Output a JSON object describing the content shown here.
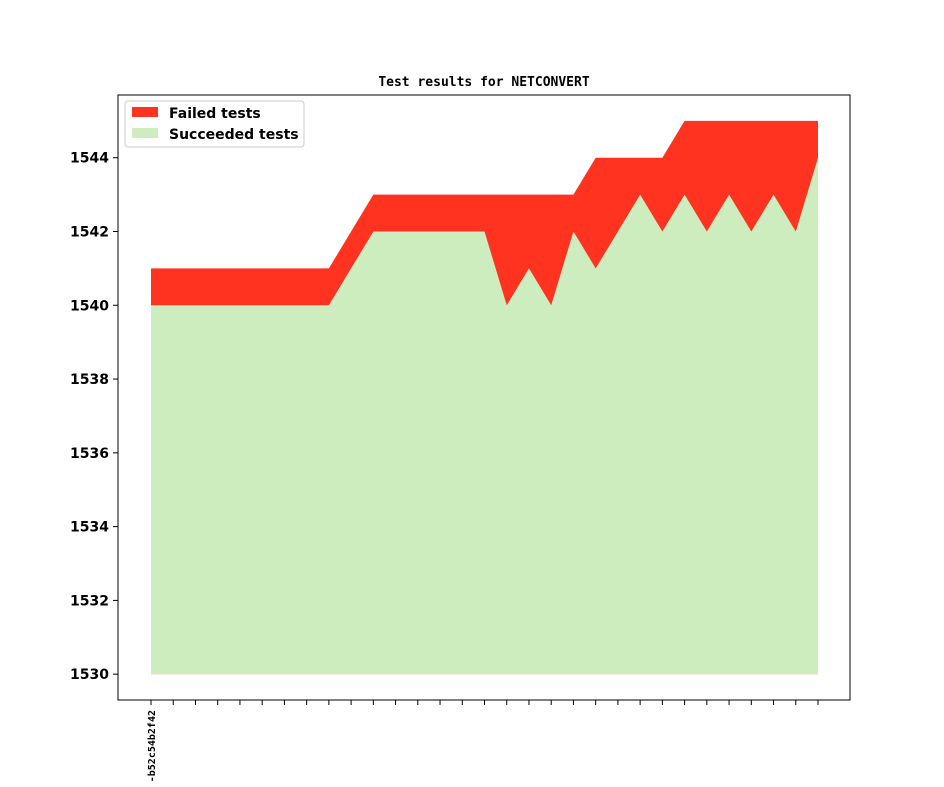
{
  "chart_data": {
    "type": "area",
    "title": "Test results for NETCONVERT",
    "xlabel": "",
    "ylabel": "",
    "ylim": [
      1529.3,
      1545.7
    ],
    "yticks": [
      1530,
      1532,
      1534,
      1536,
      1538,
      1540,
      1542,
      1544
    ],
    "x_count": 31,
    "x_tick_labels": [
      "-b52c54b2f42",
      "",
      "",
      "",
      "",
      "",
      "",
      "",
      "",
      "",
      "",
      "",
      "",
      "",
      "",
      "",
      "",
      "",
      "",
      "",
      "",
      "",
      "",
      "",
      "",
      "",
      "",
      "",
      "",
      "",
      ""
    ],
    "grid": false,
    "legend_position": "top-left",
    "baseline": 1530,
    "series": [
      {
        "name": "Failed tests",
        "color": "#ff331f",
        "values": [
          1541,
          1541,
          1541,
          1541,
          1541,
          1541,
          1541,
          1541,
          1541,
          1542,
          1543,
          1543,
          1543,
          1543,
          1543,
          1543,
          1543,
          1543,
          1543,
          1543,
          1544,
          1544,
          1544,
          1544,
          1545,
          1545,
          1545,
          1545,
          1545,
          1545,
          1545
        ]
      },
      {
        "name": "Succeeded tests",
        "color": "#ceedbe",
        "values": [
          1540,
          1540,
          1540,
          1540,
          1540,
          1540,
          1540,
          1540,
          1540,
          1541,
          1542,
          1542,
          1542,
          1542,
          1542,
          1542,
          1540,
          1541,
          1540,
          1542,
          1541,
          1542,
          1543,
          1542,
          1543,
          1542,
          1543,
          1542,
          1543,
          1542,
          1544
        ]
      }
    ]
  }
}
